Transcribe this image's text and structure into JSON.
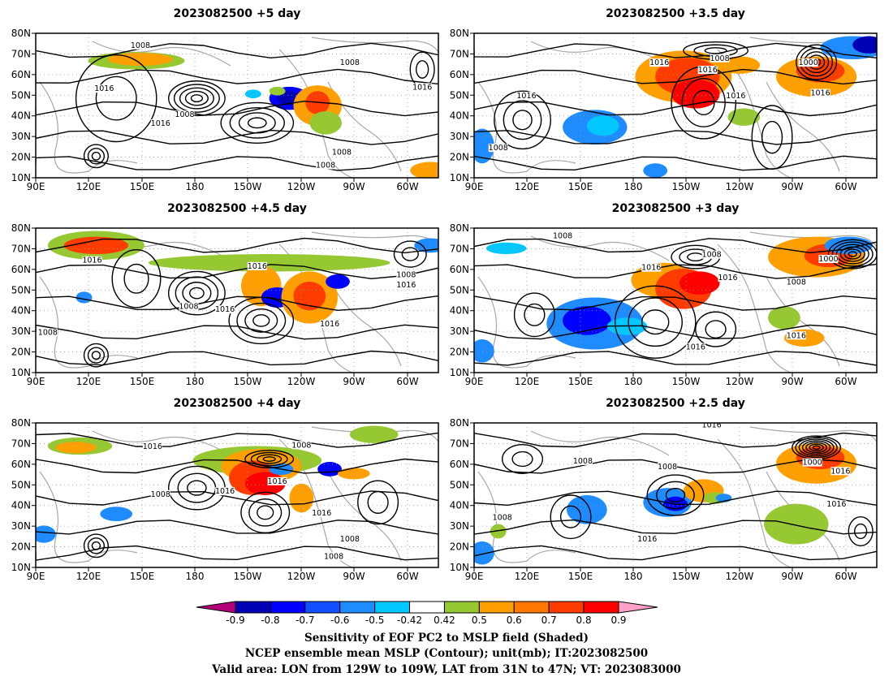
{
  "panels": [
    {
      "title": "2023082500  +5 day",
      "labels": [
        "1008",
        "1016",
        "1016",
        "1008",
        "1016",
        "1008",
        "1008",
        "1008"
      ]
    },
    {
      "title": "2023082500  +3.5  day",
      "labels": [
        "1016",
        "1008",
        "1016",
        "1016",
        "1000",
        "1016",
        "1016",
        "1008"
      ]
    },
    {
      "title": "2023082500  +4.5  day",
      "labels": [
        "1016",
        "1016",
        "1008",
        "1016",
        "1008",
        "1016",
        "1016",
        "1008"
      ]
    },
    {
      "title": "2023082500  +3  day",
      "labels": [
        "1008",
        "1016",
        "1008",
        "1000",
        "1016",
        "1016",
        "1008",
        "1016"
      ]
    },
    {
      "title": "2023082500  +4  day",
      "labels": [
        "1016",
        "1008",
        "1016",
        "1008",
        "1016",
        "1016",
        "1008",
        "1008"
      ]
    },
    {
      "title": "2023082500  +2.5  day",
      "labels": [
        "1016",
        "1008",
        "1008",
        "1000",
        "1016",
        "1016",
        "1016",
        "1008"
      ]
    }
  ],
  "axes": {
    "lat_labels": [
      "80N",
      "70N",
      "60N",
      "50N",
      "40N",
      "30N",
      "20N",
      "10N"
    ],
    "lon_labels": [
      "90E",
      "120E",
      "150E",
      "180",
      "150W",
      "120W",
      "90W",
      "60W"
    ]
  },
  "colorbar": {
    "ticks": [
      "-0.9",
      "-0.8",
      "-0.7",
      "-0.6",
      "-0.5",
      "-0.42",
      "0.42",
      "0.5",
      "0.6",
      "0.7",
      "0.8",
      "0.9"
    ],
    "colors": [
      "#b4007b",
      "#0000b4",
      "#0000ff",
      "#1450ff",
      "#1e8cff",
      "#00c8ff",
      "#ffffff",
      "#96c832",
      "#ffa000",
      "#ff7800",
      "#ff3c00",
      "#ff0000",
      "#ffa0c8"
    ]
  },
  "footer": {
    "line1": "Sensitivity of EOF PC2 to MSLP field (Shaded)",
    "line2": "NCEP ensemble mean MSLP (Contour); unit(mb); IT:2023082500",
    "line3": "Valid area: LON from 129W to 109W, LAT from 31N to 47N; VT: 2023083000"
  }
}
